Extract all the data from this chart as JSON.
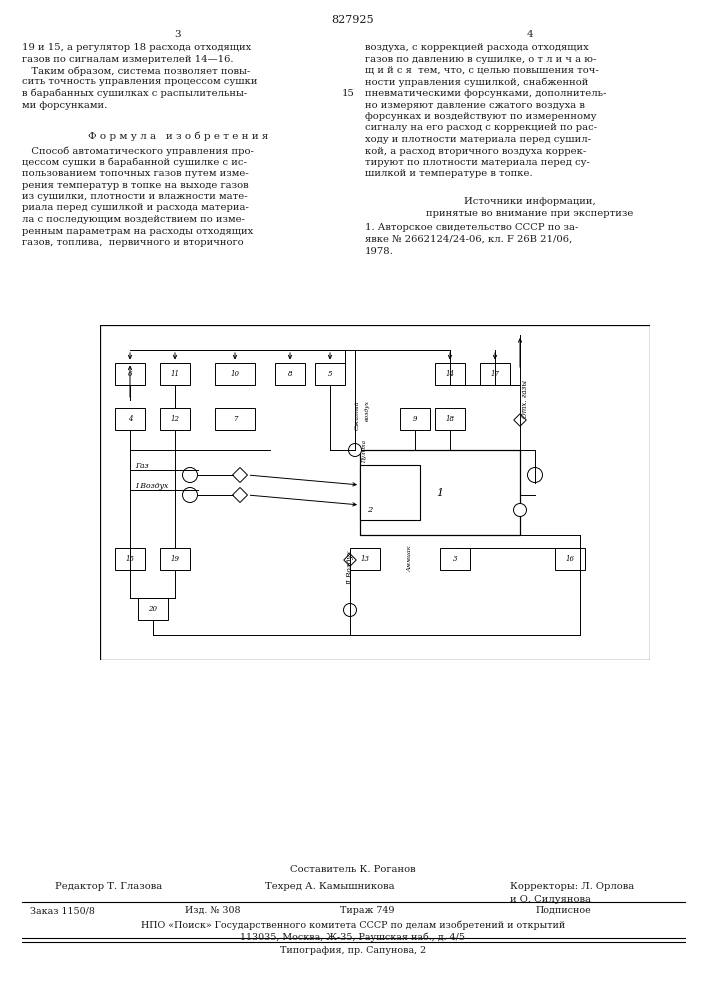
{
  "page_number": "827925",
  "col_left": "3",
  "col_right": "4",
  "bg_color": "#ffffff",
  "text_color": "#1a1a1a",
  "left_col_text_1": "19 и 15, а регулятор 18 расхода отходящих",
  "left_col_text_2": "газов по сигналам измерителей 14—16.",
  "left_col_text_3": "   Таким образом, система позволяет повы-",
  "left_col_text_4": "сить точность управления процессом сушки",
  "left_col_text_5": "в барабанных сушилках с распылительны-",
  "left_col_text_6": "ми форсунками.",
  "formula_header": "Ф о р м у л а   и з о б р е т е н и я",
  "formula_lines": [
    "   Способ автоматического управления про-",
    "цессом сушки в барабанной сушилке с ис-",
    "пользованием топочных газов путем изме-",
    "рения температур в топке на выходе газов",
    "из сушилки, плотности и влажности мате-",
    "риала перед сушилкой и расхода материа-",
    "ла с последующим воздействием по изме-",
    "ренным параметрам на расходы отходящих",
    "газов, топлива,  первичного и вторичного"
  ],
  "right_col_lines": [
    "воздуха, с коррекцией расхода отходящих",
    "газов по давлению в сушилке, о т л и ч а ю-",
    "щ и й с я  тем, что, с целью повышения точ-",
    "ности управления сушилкой, снабженной",
    "пневматическими форсунками, дополнитель-",
    "но измеряют давление сжатого воздуха в",
    "форсунках и воздействуют по измеренному",
    "сигналу на его расход с коррекцией по рас-",
    "ходу и плотности материала перед сушил-",
    "кой, а расход вторичного воздуха коррек-",
    "тируют по плотности материала перед су-",
    "шилкой и температуре в топке."
  ],
  "right_num_col": "15",
  "sources_header": "Источники информации,",
  "sources_sub": "принятые во внимание при экспертизе",
  "source_1a": "1. Авторское свидетельство СССР по за-",
  "source_1b": "явке № 2662124/24-06, кл. F 26В 21/06,",
  "source_1c": "1978.",
  "footer_composer": "Составитель К. Роганов",
  "footer_editor": "Редактор Т. Глазова",
  "footer_techred": "Техред А. Камышникова",
  "footer_corr1": "Корректоры: Л. Орлова",
  "footer_corr2": "и О. Силуянова",
  "footer_order": "Заказ 1150/8",
  "footer_izd": "Изд. № 308",
  "footer_tirazh": "Тираж 749",
  "footer_podp": "Подписное",
  "footer_npo": "НПО «Поиск» Государственного комитета СССР по делам изобретений и открытий",
  "footer_addr": "113035, Москва, Ж-35, Раушская наб., д. 4/5",
  "footer_typo": "Типография, пр. Сапунова, 2"
}
